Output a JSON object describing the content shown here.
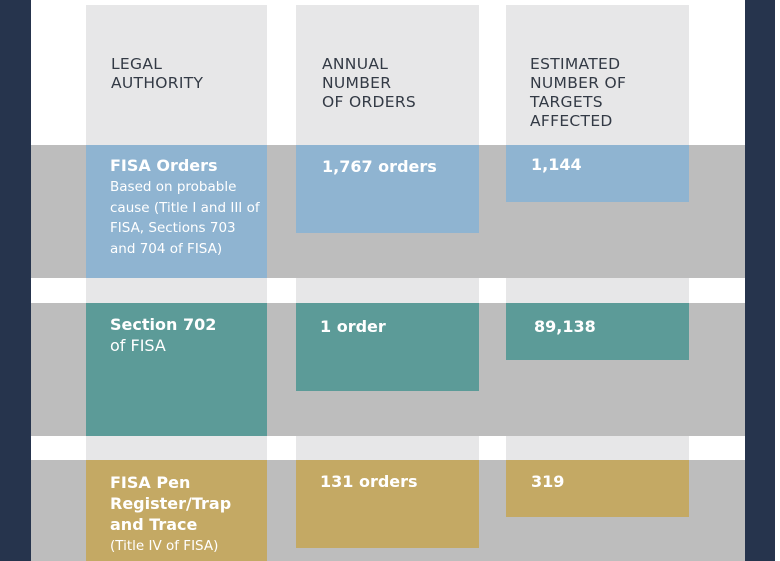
{
  "chart_data": {
    "type": "table",
    "columns": [
      "LEGAL\nAUTHORITY",
      "ANNUAL\nNUMBER\nOF ORDERS",
      "ESTIMATED\nNUMBER OF\nTARGETS\nAFFECTED"
    ],
    "rows": [
      {
        "authority": "FISA Orders",
        "detail": "Based on probable cause (Title I and III of FISA, Sections 703 and 704 of FISA)",
        "orders_label": "1,767 orders",
        "orders": 1767,
        "targets_label": "1,144",
        "targets": 1144,
        "color": "#8fb4d1"
      },
      {
        "authority": "Section 702",
        "detail": "of FISA",
        "orders_label": "1 order",
        "orders": 1,
        "targets_label": "89,138",
        "targets": 89138,
        "color": "#5c9b98"
      },
      {
        "authority": "FISA Pen\nRegister/Trap\nand Trace",
        "detail": "(Title IV of FISA)",
        "orders_label": "131 orders",
        "orders": 131,
        "targets_label": "319",
        "targets": 319,
        "color": "#c4a964"
      }
    ]
  }
}
